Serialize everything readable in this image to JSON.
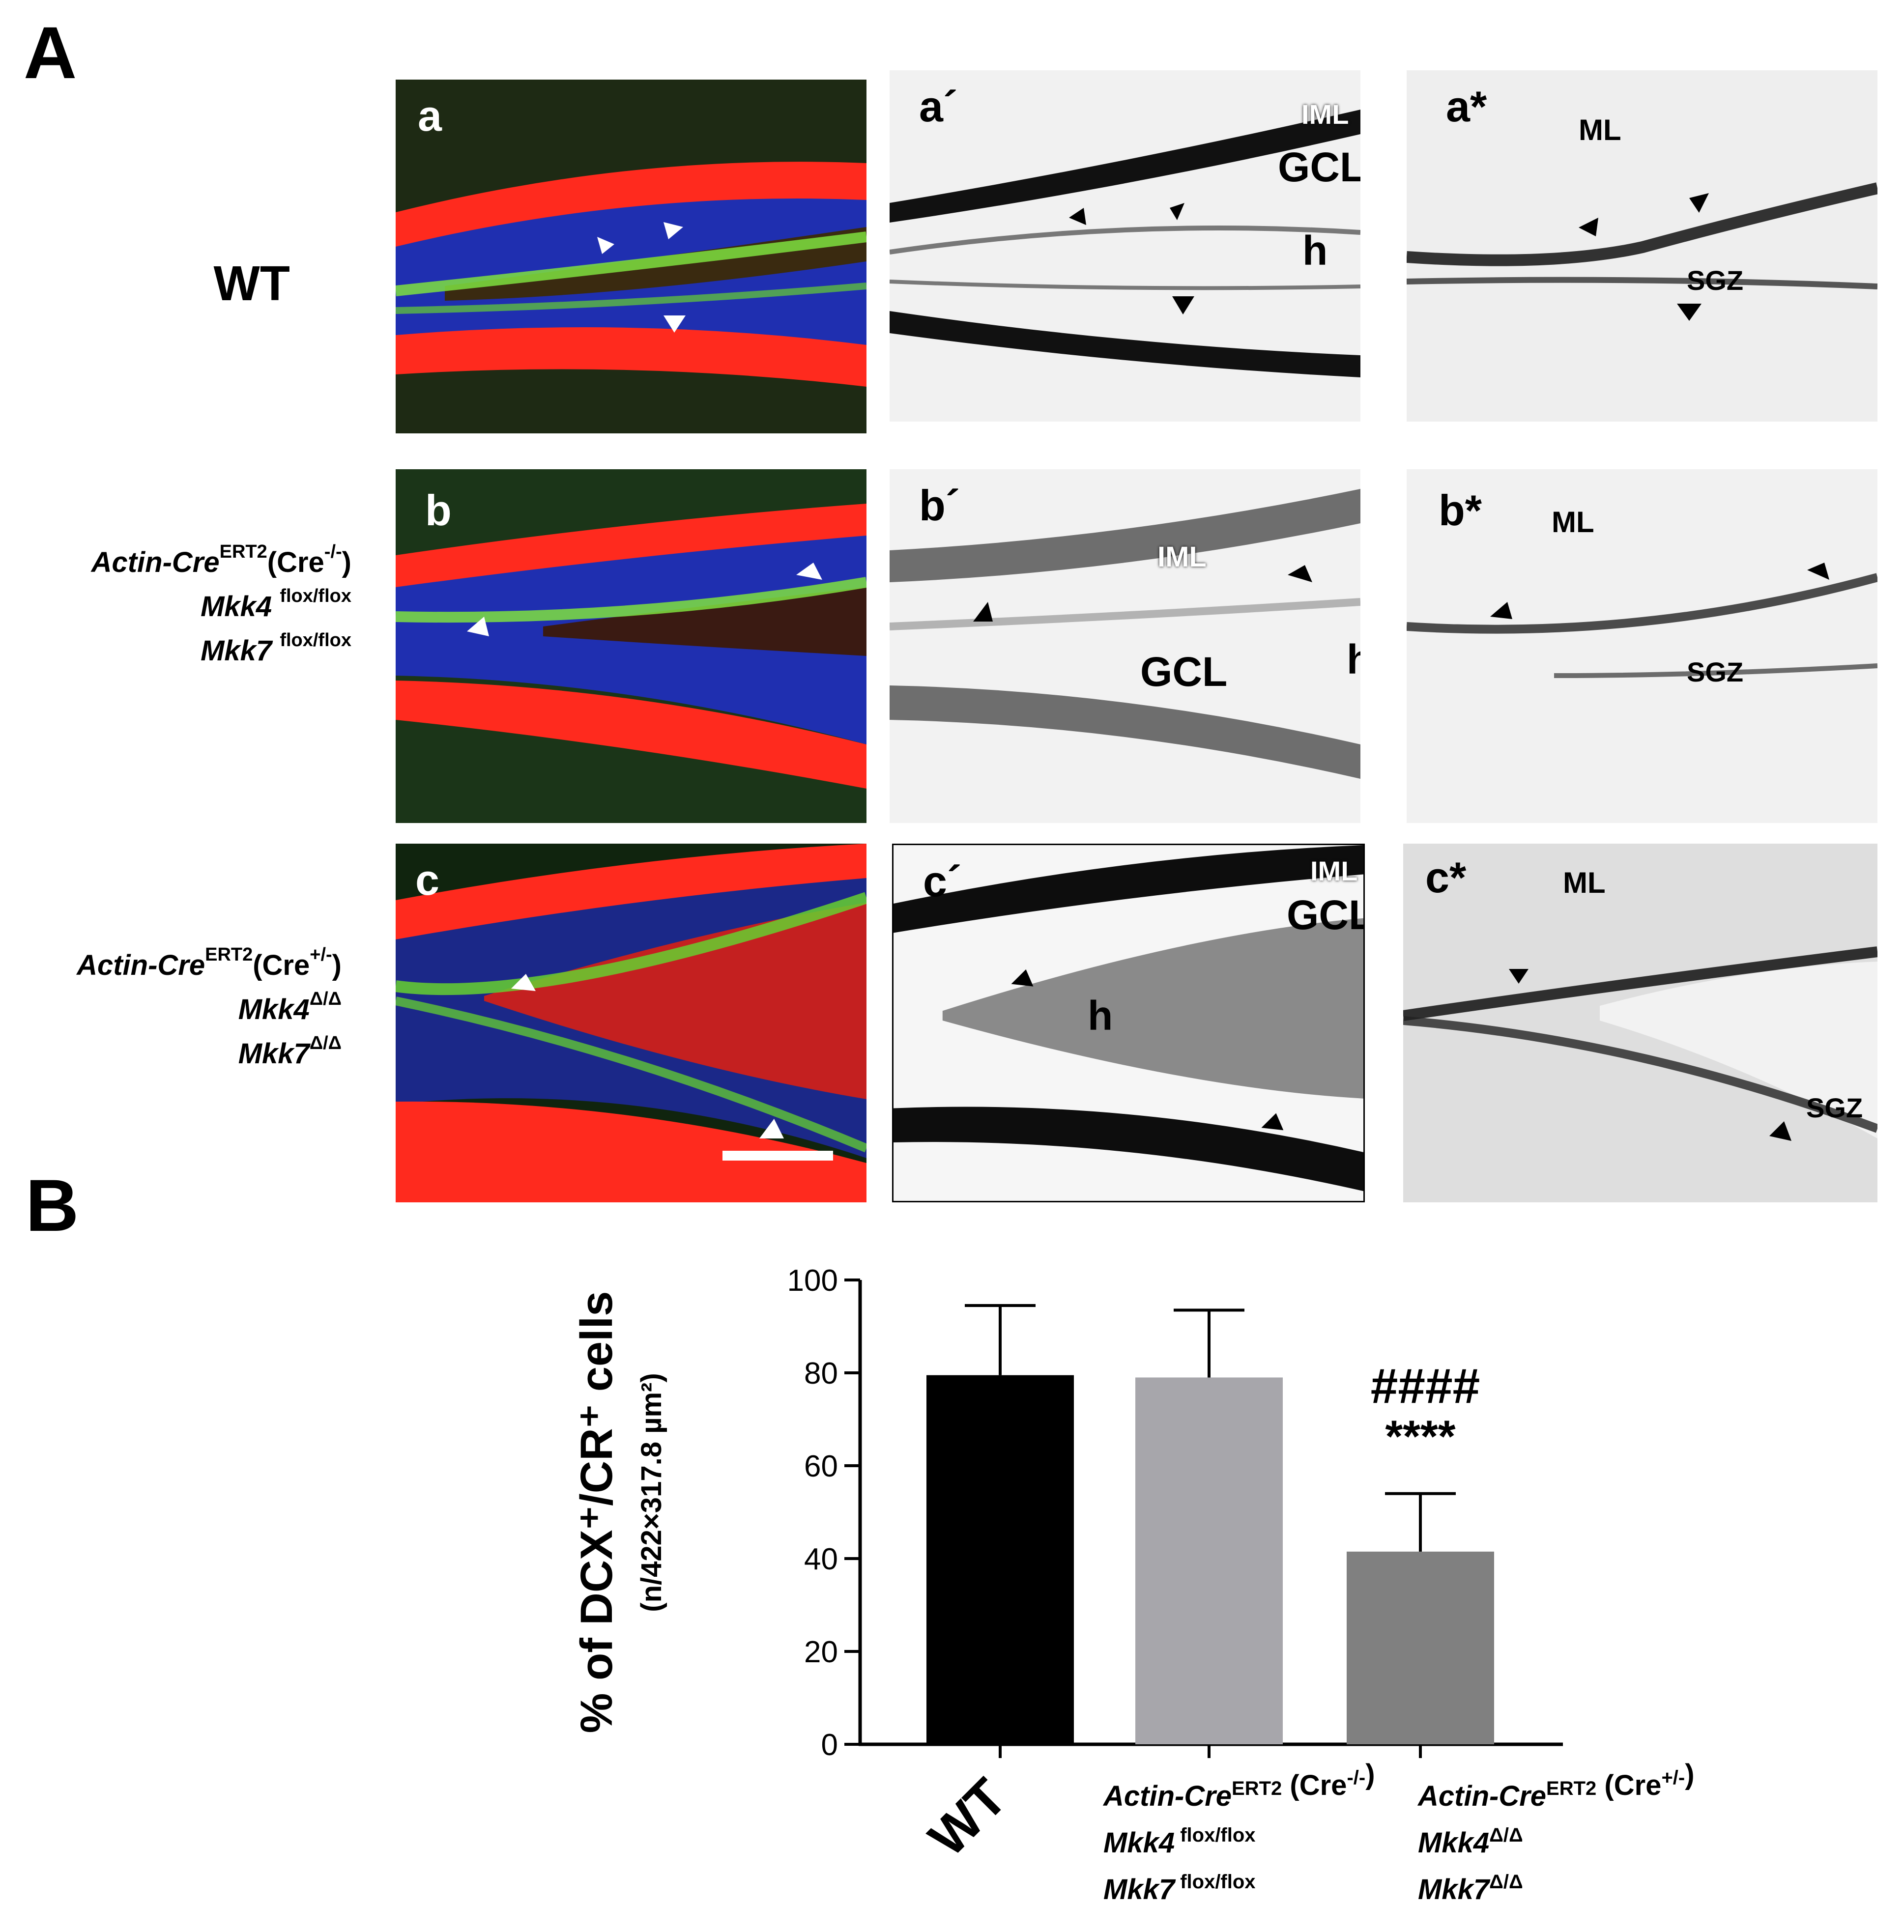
{
  "panels": {
    "A_label": "A",
    "B_label": "B"
  },
  "rows": [
    {
      "id": "wt",
      "label_lines": [
        {
          "it": "",
          "rest": "WT",
          "sup": ""
        }
      ],
      "fluor_label": "a",
      "gray_label": "a´",
      "zoom_label": "a*",
      "gray_regions": [
        "IML",
        "GCL",
        "h"
      ],
      "zoom_regions": [
        "ML",
        "SGZ"
      ]
    },
    {
      "id": "cre_neg",
      "label_lines": [
        {
          "it": "Actin-Cre",
          "sup": "ERT2",
          "rest": "(Cre",
          "sup2": "-/-",
          "tail": ")"
        },
        {
          "it": "Mkk4",
          "sup": "flox/flox"
        },
        {
          "it": "Mkk7",
          "sup": "flox/flox"
        }
      ],
      "fluor_label": "b",
      "gray_label": "b´",
      "zoom_label": "b*",
      "gray_regions": [
        "IML",
        "GCL",
        "h"
      ],
      "zoom_regions": [
        "ML",
        "SGZ"
      ]
    },
    {
      "id": "cre_pos",
      "label_lines": [
        {
          "it": "Actin-Cre",
          "sup": "ERT2",
          "rest": "(Cre",
          "sup2": "+/-",
          "tail": ")"
        },
        {
          "it": "Mkk4",
          "sup": "Δ/Δ"
        },
        {
          "it": "Mkk7",
          "sup": "Δ/Δ"
        }
      ],
      "fluor_label": "c",
      "gray_label": "c´",
      "zoom_label": "c*",
      "gray_regions": [
        "IML",
        "GCL",
        "h"
      ],
      "zoom_regions": [
        "ML",
        "SGZ"
      ]
    }
  ],
  "chart_data": {
    "type": "bar",
    "categories": [
      "WT",
      "Actin-CreERT2 (Cre-/-) Mkk4 flox/flox Mkk7 flox/flox",
      "Actin-CreERT2 (Cre+/-) Mkk4Δ/Δ Mkk7Δ/Δ"
    ],
    "values": [
      79.5,
      79,
      41.5
    ],
    "errors": [
      15,
      14.5,
      12.5
    ],
    "colors": [
      "#000000",
      "#a7a6ab",
      "#808080"
    ],
    "ylabel_main": "% of DCX⁺/CR⁺ cells",
    "ylabel_sub": "(n/422×317.8 µm²)",
    "ylim": [
      0,
      100
    ],
    "yticks": [
      "0",
      "20",
      "40",
      "60",
      "80",
      "100"
    ],
    "annotations": [
      "####",
      "****"
    ],
    "xlabels": [
      {
        "lines": [
          {
            "it": "",
            "rest": "WT"
          }
        ]
      },
      {
        "lines": [
          {
            "it": "Actin-Cre",
            "sup": "ERT2",
            "rest": " (Cre",
            "sup2": "-/-",
            "tail": ")"
          },
          {
            "it": "Mkk4",
            "sup": " flox/flox"
          },
          {
            "it": "Mkk7",
            "sup": " flox/flox"
          }
        ]
      },
      {
        "lines": [
          {
            "it": "Actin-Cre",
            "sup": "ERT2",
            "rest": " (Cre",
            "sup2": "+/-",
            "tail": ")"
          },
          {
            "it": "Mkk4",
            "sup": "Δ/Δ"
          },
          {
            "it": "Mkk7",
            "sup": "Δ/Δ"
          }
        ]
      }
    ]
  }
}
